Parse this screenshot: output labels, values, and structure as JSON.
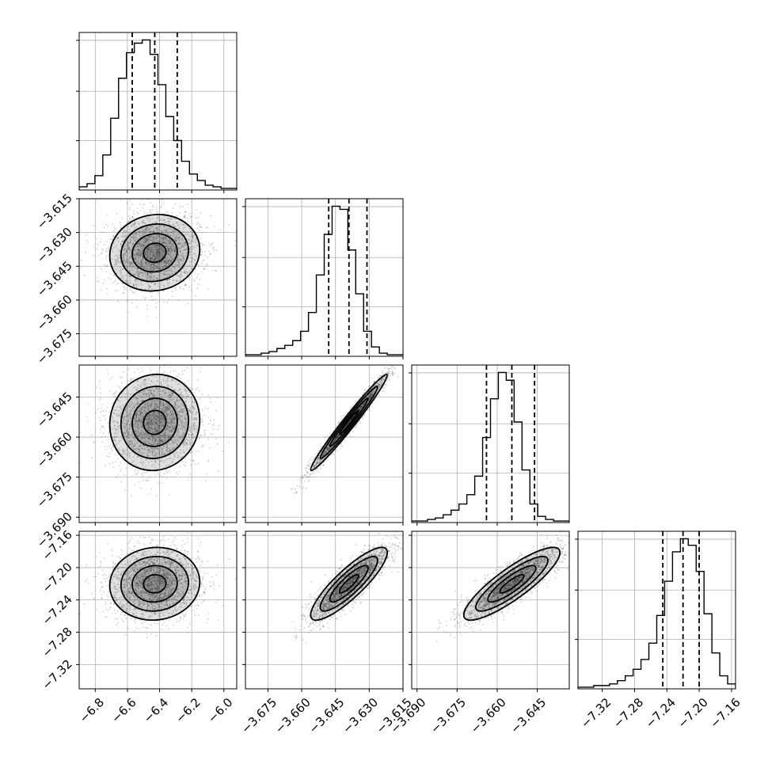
{
  "chart_data": {
    "type": "corner",
    "title": "",
    "parameters": [
      {
        "name": "",
        "median": -6.43,
        "q16": -6.57,
        "q84": -6.29,
        "range": [
          -6.9,
          -5.92
        ],
        "ticks": [
          -6.8,
          -6.6,
          -6.4,
          -6.2,
          -6.0
        ],
        "tick_labels": [
          "−6.8",
          "−6.6",
          "−6.4",
          "−6.2",
          "−6.0"
        ],
        "hist_counts": [
          2,
          4,
          9,
          22,
          45,
          70,
          86,
          92,
          94,
          85,
          66,
          46,
          31,
          18,
          10,
          6,
          3,
          2,
          1,
          1
        ]
      },
      {
        "name": "",
        "median": -3.639,
        "q16": -3.648,
        "q84": -3.631,
        "range": [
          -3.685,
          -3.615
        ],
        "ticks": [
          -3.675,
          -3.66,
          -3.645,
          -3.63,
          -3.615
        ],
        "tick_labels": [
          "−3.675",
          "−3.660",
          "−3.645",
          "−3.630",
          "−3.615"
        ],
        "hist_counts": [
          1,
          1,
          2,
          3,
          5,
          7,
          10,
          16,
          28,
          52,
          78,
          96,
          94,
          68,
          40,
          16,
          6,
          2,
          1,
          1
        ]
      },
      {
        "name": "",
        "median": -3.6545,
        "q16": -3.664,
        "q84": -3.646,
        "range": [
          -3.692,
          -3.633
        ],
        "ticks": [
          -3.69,
          -3.675,
          -3.66,
          -3.645
        ],
        "tick_labels": [
          "−3.690",
          "−3.675",
          "−3.660",
          "−3.645"
        ],
        "hist_counts": [
          1,
          1,
          2,
          3,
          5,
          8,
          12,
          18,
          30,
          55,
          80,
          97,
          92,
          65,
          34,
          12,
          4,
          2,
          1,
          1
        ]
      },
      {
        "name": "",
        "median": -7.22,
        "q16": -7.245,
        "q84": -7.2,
        "range": [
          -7.35,
          -7.155
        ],
        "ticks": [
          -7.32,
          -7.28,
          -7.24,
          -7.2,
          -7.16
        ],
        "tick_labels": [
          "−7.32",
          "−7.28",
          "−7.24",
          "−7.20",
          "−7.16"
        ],
        "hist_counts": [
          1,
          1,
          2,
          2,
          3,
          5,
          8,
          12,
          18,
          28,
          45,
          66,
          84,
          92,
          88,
          72,
          46,
          22,
          8,
          3
        ]
      }
    ],
    "pairs": [
      {
        "row": 1,
        "col": 0,
        "correlation": 0.08
      },
      {
        "row": 2,
        "col": 0,
        "correlation": 0.05
      },
      {
        "row": 2,
        "col": 1,
        "correlation": 0.98
      },
      {
        "row": 3,
        "col": 0,
        "correlation": 0.05
      },
      {
        "row": 3,
        "col": 1,
        "correlation": 0.86
      },
      {
        "row": 3,
        "col": 2,
        "correlation": 0.86
      }
    ],
    "quantiles": [
      0.16,
      0.5,
      0.84
    ],
    "grid": true
  }
}
